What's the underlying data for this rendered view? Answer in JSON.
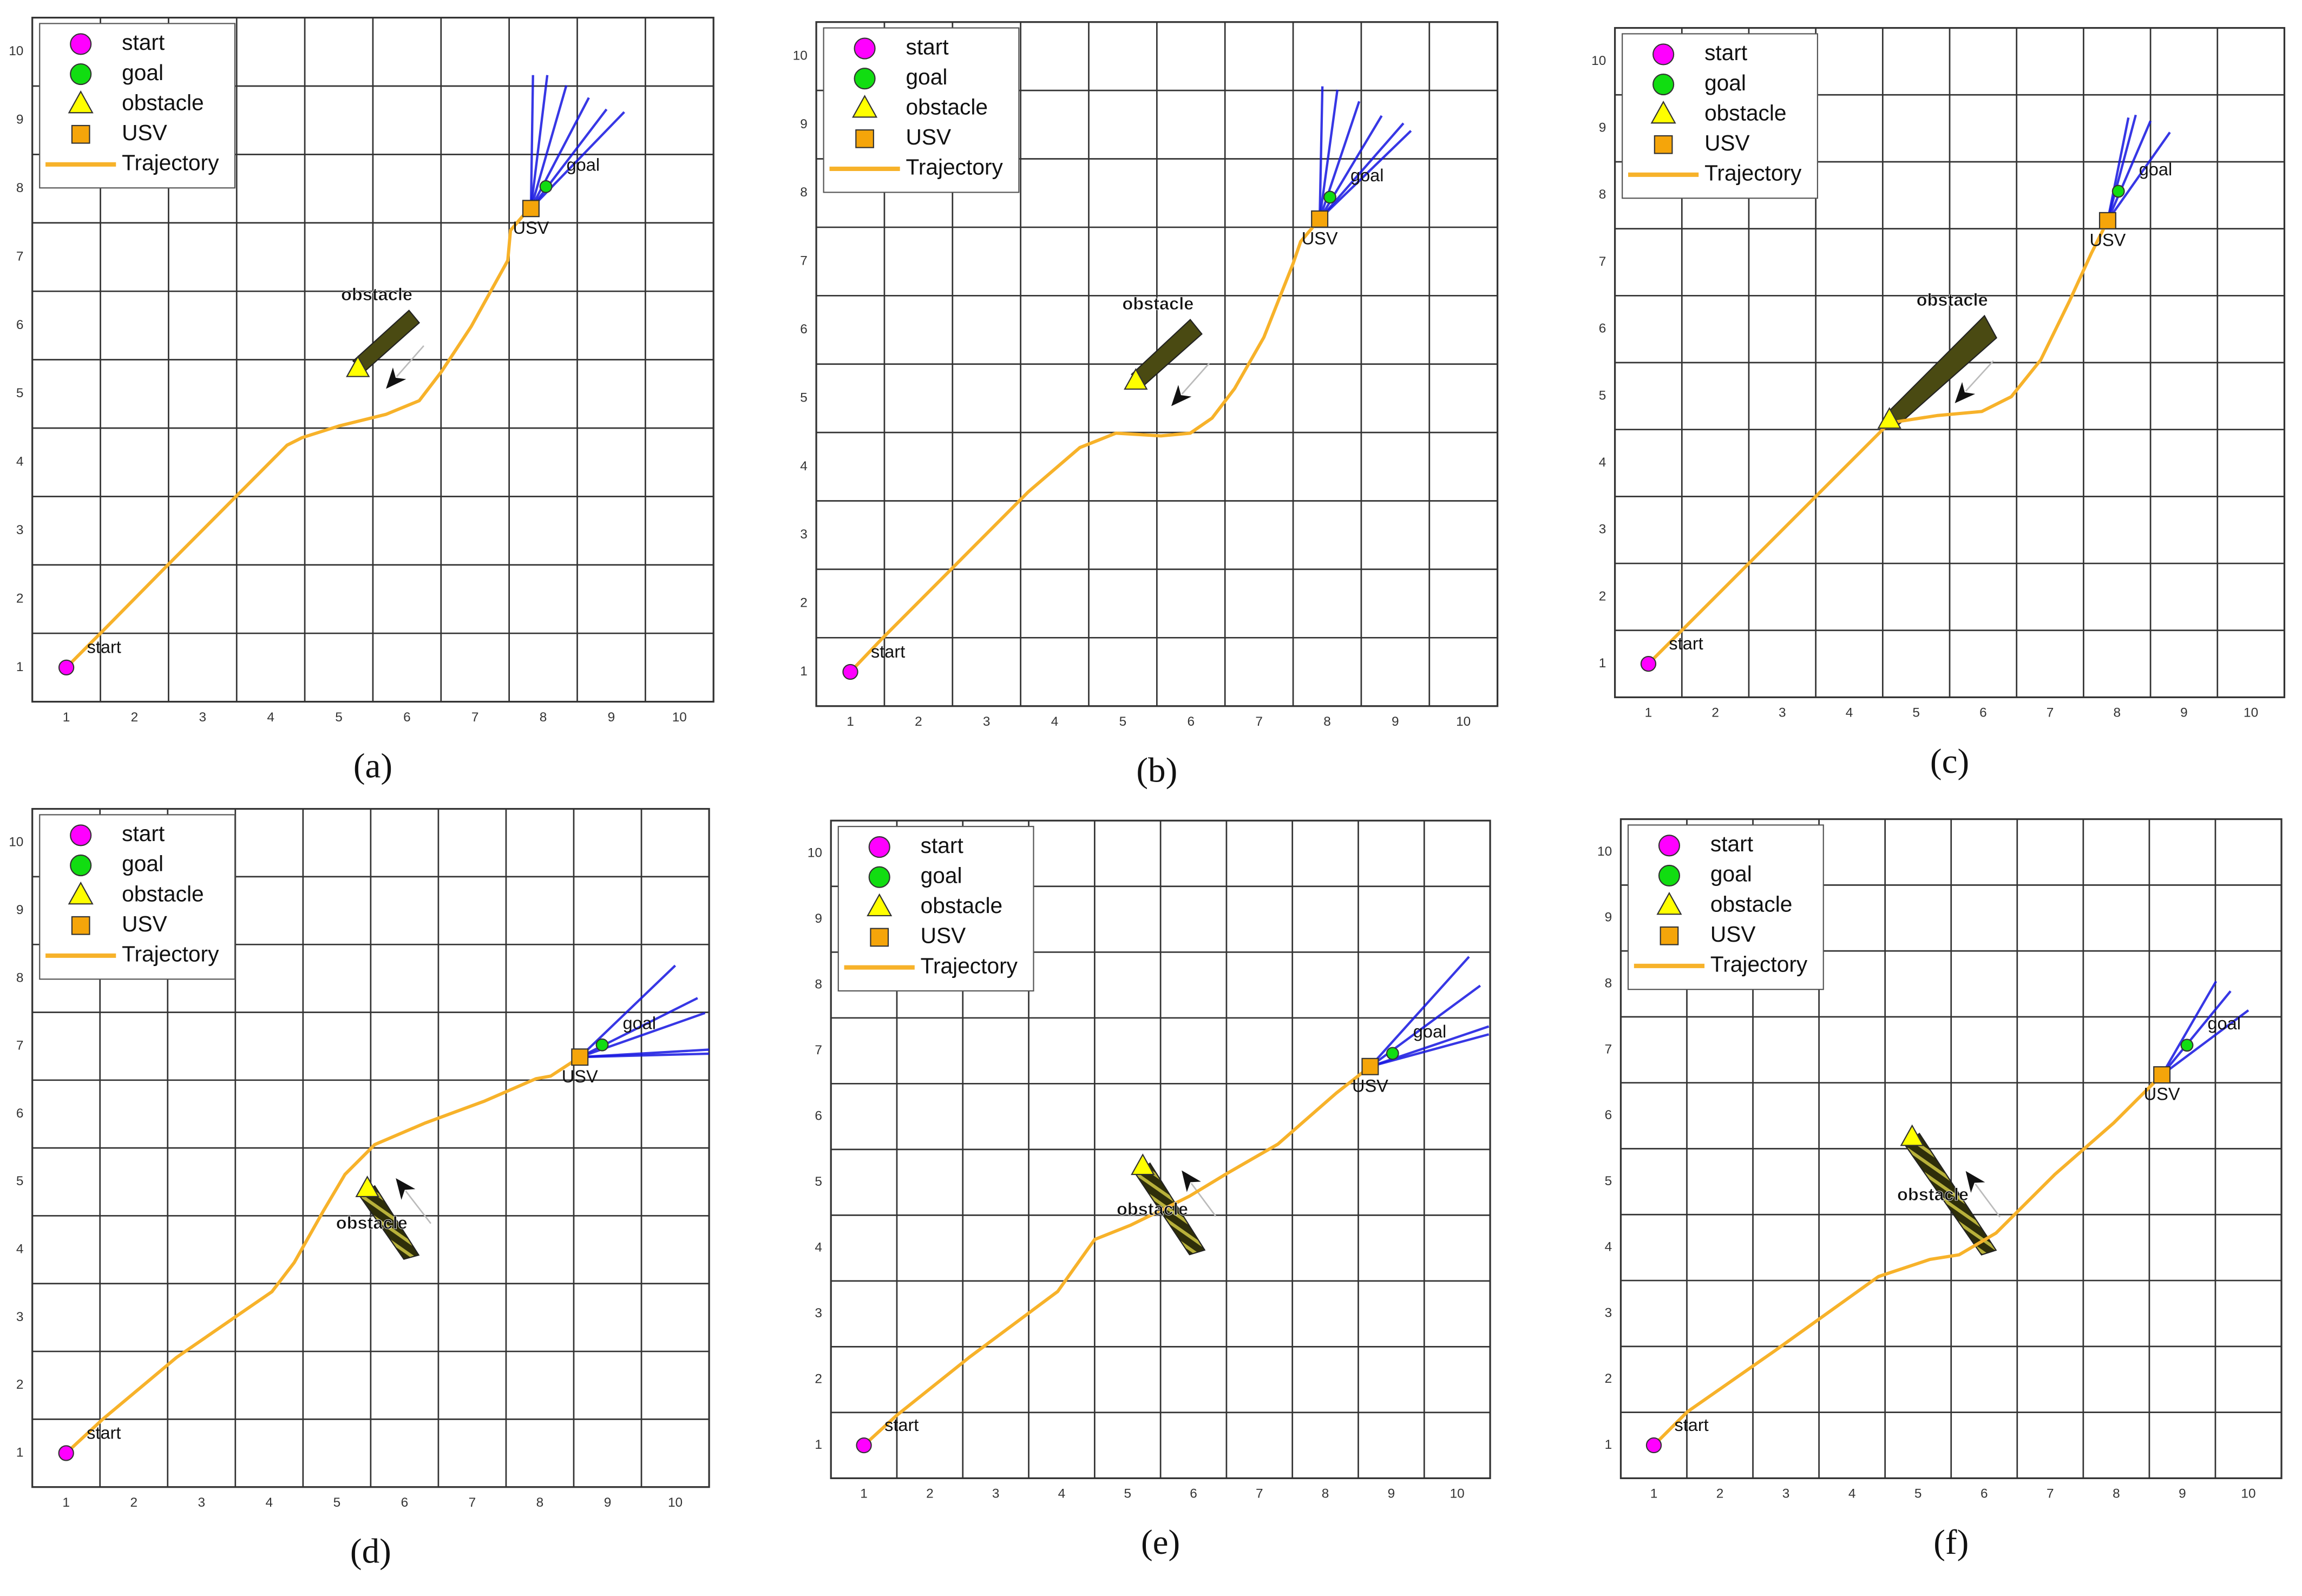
{
  "chart_data": [
    {
      "type": "line",
      "caption": "(a)",
      "xlim": [
        0.5,
        10.5
      ],
      "ylim": [
        0.5,
        10.5
      ],
      "xticks": [
        1,
        2,
        3,
        4,
        5,
        6,
        7,
        8,
        9,
        10
      ],
      "yticks": [
        1,
        2,
        3,
        4,
        5,
        6,
        7,
        8,
        9,
        10
      ],
      "grid_x": [
        1.5,
        2.5,
        3.5,
        4.5,
        5.5,
        6.5,
        7.5,
        8.5,
        9.5
      ],
      "grid_y": [
        1.5,
        2.5,
        3.5,
        4.5,
        5.5,
        6.5,
        7.5,
        8.5,
        9.5
      ],
      "points": [
        {
          "name": "start",
          "marker": "circle",
          "color": "#ff00ff",
          "x": 1,
          "y": 1
        },
        {
          "name": "goal",
          "marker": "circle",
          "color": "#11dd11",
          "x": 8.04,
          "y": 8.03
        },
        {
          "name": "obstacle",
          "marker": "triangle",
          "color": "#ffff00",
          "x": 5.28,
          "y": 5.37
        },
        {
          "name": "USV",
          "marker": "square",
          "color": "#f5a50a",
          "x": 7.82,
          "y": 7.71
        }
      ],
      "series": [
        {
          "name": "Trajectory",
          "color": "#f7b22a",
          "x": [
            1,
            1.54,
            2.51,
            3.48,
            4.24,
            4.46,
            5.0,
            5.69,
            6.18,
            6.51,
            6.94,
            7.48,
            7.52,
            7.7,
            7.82
          ],
          "y": [
            1,
            1.54,
            2.52,
            3.49,
            4.25,
            4.36,
            4.53,
            4.7,
            4.9,
            5.33,
            5.98,
            6.95,
            7.39,
            7.6,
            7.71
          ]
        }
      ],
      "obstacle_body": {
        "color": "#4a4a12",
        "x": [
          5.21,
          5.38,
          6.18,
          6.03
        ],
        "y": [
          5.48,
          5.33,
          6.04,
          6.22
        ]
      },
      "hatch": false,
      "heading": {
        "x": 5.82,
        "y": 5.22
      },
      "fan": {
        "color": "#1414e0",
        "x": [
          7.85,
          8.06,
          8.34,
          8.67,
          8.93,
          9.19
        ],
        "y": [
          9.66,
          9.66,
          9.51,
          9.33,
          9.16,
          9.12
        ]
      }
    },
    {
      "type": "line",
      "caption": "(b)",
      "xlim": [
        0.5,
        10.5
      ],
      "ylim": [
        0.5,
        10.5
      ],
      "xticks": [
        1,
        2,
        3,
        4,
        5,
        6,
        7,
        8,
        9,
        10
      ],
      "yticks": [
        1,
        2,
        3,
        4,
        5,
        6,
        7,
        8,
        9,
        10
      ],
      "grid_x": [
        1.5,
        2.5,
        3.5,
        4.5,
        5.5,
        6.5,
        7.5,
        8.5,
        9.5
      ],
      "grid_y": [
        1.5,
        2.5,
        3.5,
        4.5,
        5.5,
        6.5,
        7.5,
        8.5,
        9.5
      ],
      "points": [
        {
          "name": "start",
          "marker": "circle",
          "color": "#ff00ff",
          "x": 1,
          "y": 1
        },
        {
          "name": "goal",
          "marker": "circle",
          "color": "#11dd11",
          "x": 8.04,
          "y": 7.94
        },
        {
          "name": "obstacle",
          "marker": "triangle",
          "color": "#ffff00",
          "x": 5.19,
          "y": 5.25
        },
        {
          "name": "USV",
          "marker": "square",
          "color": "#f5a50a",
          "x": 7.89,
          "y": 7.62
        }
      ],
      "series": [
        {
          "name": "Trajectory",
          "color": "#f7b22a",
          "x": [
            1,
            1.45,
            2.53,
            3.61,
            4.37,
            4.9,
            5.56,
            5.99,
            6.31,
            6.64,
            7.07,
            7.5,
            7.61,
            7.89
          ],
          "y": [
            1,
            1.47,
            2.55,
            3.63,
            4.28,
            4.49,
            4.45,
            4.49,
            4.71,
            5.14,
            5.89,
            6.97,
            7.29,
            7.62
          ]
        }
      ],
      "obstacle_body": {
        "color": "#4a4a12",
        "x": [
          5.13,
          5.3,
          6.16,
          5.99
        ],
        "y": [
          5.35,
          5.18,
          5.94,
          6.15
        ]
      },
      "hatch": false,
      "heading": {
        "x": 5.84,
        "y": 5.03
      },
      "fan": {
        "color": "#1414e0",
        "x": [
          7.93,
          8.15,
          8.47,
          8.8,
          9.12,
          9.23
        ],
        "y": [
          9.56,
          9.51,
          9.34,
          9.13,
          9.02,
          8.91
        ]
      }
    },
    {
      "type": "line",
      "caption": "(c)",
      "xlim": [
        0.5,
        10.5
      ],
      "ylim": [
        0.5,
        10.5
      ],
      "xticks": [
        1,
        2,
        3,
        4,
        5,
        6,
        7,
        8,
        9,
        10
      ],
      "yticks": [
        1,
        2,
        3,
        4,
        5,
        6,
        7,
        8,
        9,
        10
      ],
      "grid_x": [
        1.5,
        2.5,
        3.5,
        4.5,
        5.5,
        6.5,
        7.5,
        8.5,
        9.5
      ],
      "grid_y": [
        1.5,
        2.5,
        3.5,
        4.5,
        5.5,
        6.5,
        7.5,
        8.5,
        9.5
      ],
      "points": [
        {
          "name": "start",
          "marker": "circle",
          "color": "#ff00ff",
          "x": 1,
          "y": 1
        },
        {
          "name": "goal",
          "marker": "circle",
          "color": "#11dd11",
          "x": 8.02,
          "y": 8.06
        },
        {
          "name": "obstacle",
          "marker": "triangle",
          "color": "#ffff00",
          "x": 4.6,
          "y": 4.64
        },
        {
          "name": "USV",
          "marker": "square",
          "color": "#f5a50a",
          "x": 7.86,
          "y": 7.62
        }
      ],
      "series": [
        {
          "name": "Trajectory",
          "color": "#f7b22a",
          "x": [
            1,
            1.59,
            2.69,
            3.79,
            4.6,
            5.32,
            5.98,
            6.42,
            6.86,
            7.29,
            7.62,
            7.86
          ],
          "y": [
            1,
            1.59,
            2.69,
            3.79,
            4.6,
            4.71,
            4.77,
            4.99,
            5.54,
            6.42,
            7.14,
            7.62
          ]
        }
      ],
      "obstacle_body": {
        "color": "#4a4a12",
        "x": [
          4.55,
          4.71,
          6.2,
          6.02
        ],
        "y": [
          4.73,
          4.55,
          5.87,
          6.2
        ]
      },
      "hatch": false,
      "heading": {
        "x": 5.71,
        "y": 5.04
      },
      "fan": {
        "color": "#1414e0",
        "x": [
          8.17,
          8.28,
          8.5,
          8.79
        ],
        "y": [
          9.16,
          9.2,
          9.11,
          8.94
        ]
      }
    },
    {
      "type": "line",
      "caption": "(d)",
      "xlim": [
        0.5,
        10.5
      ],
      "ylim": [
        0.5,
        10.5
      ],
      "xticks": [
        1,
        2,
        3,
        4,
        5,
        6,
        7,
        8,
        9,
        10
      ],
      "yticks": [
        1,
        2,
        3,
        4,
        5,
        6,
        7,
        8,
        9,
        10
      ],
      "grid_x": [
        1.5,
        2.5,
        3.5,
        4.5,
        5.5,
        6.5,
        7.5,
        8.5,
        9.5
      ],
      "grid_y": [
        1.5,
        2.5,
        3.5,
        4.5,
        5.5,
        6.5,
        7.5,
        8.5,
        9.5
      ],
      "points": [
        {
          "name": "start",
          "marker": "circle",
          "color": "#ff00ff",
          "x": 1,
          "y": 1
        },
        {
          "name": "goal",
          "marker": "circle",
          "color": "#11dd11",
          "x": 8.92,
          "y": 7.02
        },
        {
          "name": "obstacle",
          "marker": "triangle",
          "color": "#ffff00",
          "x": 5.45,
          "y": 4.9
        },
        {
          "name": "USV",
          "marker": "square",
          "color": "#f5a50a",
          "x": 8.59,
          "y": 6.84
        }
      ],
      "series": [
        {
          "name": "Trajectory",
          "color": "#f7b22a",
          "x": [
            1,
            1.54,
            2.63,
            4.04,
            4.37,
            4.8,
            5.12,
            5.56,
            6.31,
            7.18,
            7.94,
            8.16,
            8.59
          ],
          "y": [
            1,
            1.5,
            2.41,
            3.38,
            3.81,
            4.57,
            5.11,
            5.55,
            5.87,
            6.19,
            6.52,
            6.56,
            6.84
          ]
        }
      ],
      "obstacle_body": {
        "color": "#4a4a12",
        "x": [
          5.34,
          5.56,
          6.21,
          5.99
        ],
        "y": [
          4.79,
          4.94,
          3.92,
          3.86
        ]
      },
      "hatch": true,
      "heading": {
        "x": 5.99,
        "y": 4.9
      },
      "fan": {
        "color": "#1414e0",
        "x": [
          10.0,
          10.33,
          10.44,
          10.5,
          10.5
        ],
        "y": [
          8.19,
          7.71,
          7.49,
          6.95,
          6.89
        ]
      }
    },
    {
      "type": "line",
      "caption": "(e)",
      "xlim": [
        0.5,
        10.5
      ],
      "ylim": [
        0.5,
        10.5
      ],
      "xticks": [
        1,
        2,
        3,
        4,
        5,
        6,
        7,
        8,
        9,
        10
      ],
      "yticks": [
        1,
        2,
        3,
        4,
        5,
        6,
        7,
        8,
        9,
        10
      ],
      "grid_x": [
        1.5,
        2.5,
        3.5,
        4.5,
        5.5,
        6.5,
        7.5,
        8.5,
        9.5
      ],
      "grid_y": [
        1.5,
        2.5,
        3.5,
        4.5,
        5.5,
        6.5,
        7.5,
        8.5,
        9.5
      ],
      "points": [
        {
          "name": "start",
          "marker": "circle",
          "color": "#ff00ff",
          "x": 1,
          "y": 1
        },
        {
          "name": "goal",
          "marker": "circle",
          "color": "#11dd11",
          "x": 9.02,
          "y": 6.96
        },
        {
          "name": "obstacle",
          "marker": "triangle",
          "color": "#ffff00",
          "x": 5.23,
          "y": 5.24
        },
        {
          "name": "USV",
          "marker": "square",
          "color": "#f5a50a",
          "x": 8.68,
          "y": 6.76
        }
      ],
      "series": [
        {
          "name": "Trajectory",
          "color": "#f7b22a",
          "x": [
            1,
            1.49,
            2.6,
            3.94,
            4.5,
            5.05,
            5.5,
            5.94,
            6.5,
            7.28,
            8.17,
            8.68
          ],
          "y": [
            1,
            1.45,
            2.34,
            3.34,
            4.13,
            4.35,
            4.57,
            4.79,
            5.13,
            5.58,
            6.36,
            6.76
          ]
        }
      ],
      "obstacle_body": {
        "color": "#4a4a12",
        "x": [
          5.12,
          5.34,
          6.17,
          5.94
        ],
        "y": [
          5.13,
          5.29,
          3.97,
          3.9
        ]
      },
      "hatch": true,
      "heading": {
        "x": 5.94,
        "y": 5.02
      },
      "fan": {
        "color": "#1414e0",
        "x": [
          10.18,
          10.35,
          10.48,
          10.48
        ],
        "y": [
          8.43,
          7.99,
          7.37,
          7.25
        ]
      }
    },
    {
      "type": "line",
      "caption": "(f)",
      "xlim": [
        0.5,
        10.5
      ],
      "ylim": [
        0.5,
        10.5
      ],
      "xticks": [
        1,
        2,
        3,
        4,
        5,
        6,
        7,
        8,
        9,
        10
      ],
      "yticks": [
        1,
        2,
        3,
        4,
        5,
        6,
        7,
        8,
        9,
        10
      ],
      "grid_x": [
        1.5,
        2.5,
        3.5,
        4.5,
        5.5,
        6.5,
        7.5,
        8.5,
        9.5
      ],
      "grid_y": [
        1.5,
        2.5,
        3.5,
        4.5,
        5.5,
        6.5,
        7.5,
        8.5,
        9.5
      ],
      "points": [
        {
          "name": "start",
          "marker": "circle",
          "color": "#ff00ff",
          "x": 1,
          "y": 1
        },
        {
          "name": "goal",
          "marker": "circle",
          "color": "#11dd11",
          "x": 9.07,
          "y": 7.07
        },
        {
          "name": "obstacle",
          "marker": "triangle",
          "color": "#ffff00",
          "x": 4.91,
          "y": 5.67
        },
        {
          "name": "USV",
          "marker": "square",
          "color": "#f5a50a",
          "x": 8.69,
          "y": 6.62
        }
      ],
      "series": [
        {
          "name": "Trajectory",
          "color": "#f7b22a",
          "x": [
            1,
            1.51,
            2.84,
            4.4,
            5.18,
            5.62,
            6.18,
            7.07,
            7.96,
            8.69
          ],
          "y": [
            1,
            1.51,
            2.44,
            3.56,
            3.82,
            3.89,
            4.22,
            5.11,
            5.89,
            6.62
          ]
        }
      ],
      "obstacle_body": {
        "color": "#4a4a12",
        "x": [
          4.8,
          5.02,
          6.18,
          5.96
        ],
        "y": [
          5.56,
          5.73,
          3.96,
          3.89
        ]
      },
      "hatch": true,
      "heading": {
        "x": 5.84,
        "y": 5.0
      },
      "fan": {
        "color": "#1414e0",
        "x": [
          9.51,
          9.73,
          10.0
        ],
        "y": [
          8.04,
          7.89,
          7.6
        ]
      }
    }
  ]
}
